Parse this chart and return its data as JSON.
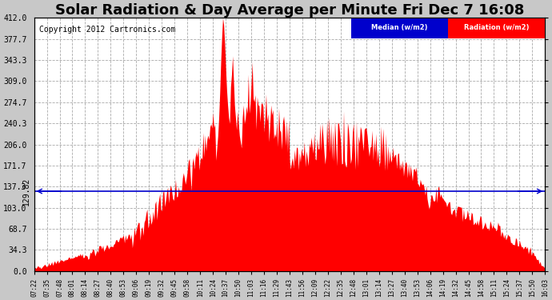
{
  "title": "Solar Radiation & Day Average per Minute Fri Dec 7 16:08",
  "copyright": "Copyright 2012 Cartronics.com",
  "legend_median_label": "Median (w/m2)",
  "legend_radiation_label": "Radiation (w/m2)",
  "median_value": 129.82,
  "y_max": 412.0,
  "y_min": 0.0,
  "y_ticks": [
    0.0,
    34.3,
    68.7,
    103.0,
    137.3,
    171.7,
    206.0,
    240.3,
    274.7,
    309.0,
    343.3,
    377.7,
    412.0
  ],
  "background_color": "#c8c8c8",
  "plot_bg_color": "#ffffff",
  "fill_color": "#ff0000",
  "median_line_color": "#0000cc",
  "grid_color": "#aaaaaa",
  "title_fontsize": 13,
  "copyright_fontsize": 7,
  "tick_fontsize": 7,
  "legend_median_bg": "#0000cc",
  "legend_radiation_bg": "#ff0000",
  "x_tick_labels": [
    "07:22",
    "07:35",
    "07:48",
    "08:01",
    "08:14",
    "08:27",
    "08:40",
    "08:53",
    "09:06",
    "09:19",
    "09:32",
    "09:45",
    "09:58",
    "10:11",
    "10:24",
    "10:37",
    "10:50",
    "11:03",
    "11:16",
    "11:29",
    "11:43",
    "11:56",
    "12:09",
    "12:22",
    "12:35",
    "12:48",
    "13:01",
    "13:14",
    "13:27",
    "13:40",
    "13:53",
    "14:06",
    "14:19",
    "14:32",
    "14:45",
    "14:58",
    "15:11",
    "15:24",
    "15:37",
    "15:50",
    "16:03"
  ]
}
